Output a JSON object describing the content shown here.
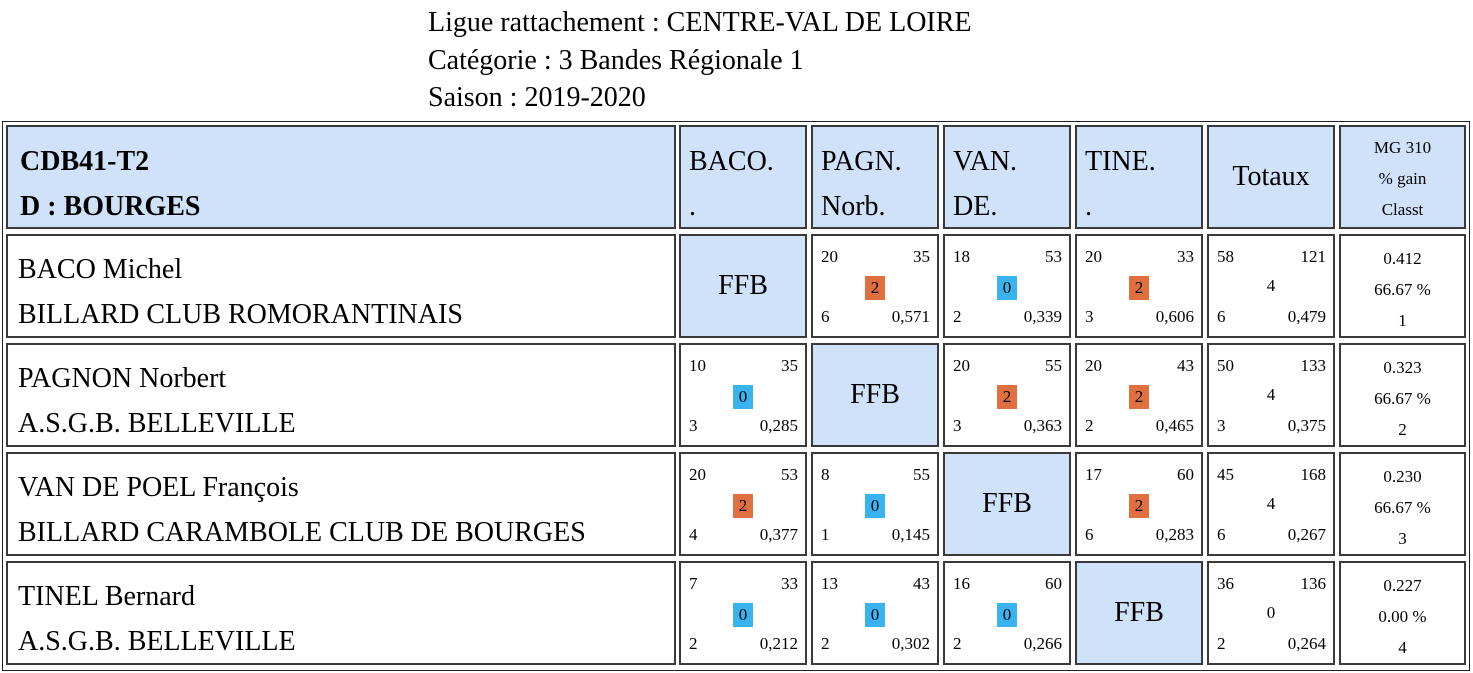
{
  "header": {
    "ligue": "Ligue rattachement : CENTRE-VAL DE LOIRE",
    "categorie": "Catégorie :  3 Bandes Régionale 1",
    "saison": "Saison : 2019-2020"
  },
  "table_header": {
    "group_code": "CDB41-T2",
    "group_place": "D : BOURGES",
    "columns": [
      {
        "line1": "BACO.",
        "line2": "."
      },
      {
        "line1": "PAGN.",
        "line2": "Norb."
      },
      {
        "line1": "VAN.",
        "line2": "DE."
      },
      {
        "line1": "TINE.",
        "line2": "."
      }
    ],
    "totals": "Totaux",
    "mg_lines": [
      "MG 310",
      "% gain",
      "Classt"
    ]
  },
  "colors": {
    "win": "#e0703f",
    "loss": "#39b3f0",
    "self": "#cfe2fa"
  },
  "rows": [
    {
      "name": "BACO Michel",
      "club": "BILLARD CLUB ROMORANTINAIS",
      "results": [
        {
          "self": true,
          "label": "FFB"
        },
        {
          "points": "20",
          "reprises": "35",
          "score": "2",
          "outcome": "win",
          "series": "6",
          "moyenne": "0,571"
        },
        {
          "points": "18",
          "reprises": "53",
          "score": "0",
          "outcome": "loss",
          "series": "2",
          "moyenne": "0,339"
        },
        {
          "points": "20",
          "reprises": "33",
          "score": "2",
          "outcome": "win",
          "series": "3",
          "moyenne": "0,606"
        }
      ],
      "totals": {
        "points": "58",
        "reprises": "121",
        "score": "4",
        "series": "6",
        "moyenne": "0,479"
      },
      "mg": "0.412",
      "gain": "66.67 %",
      "rank": "1"
    },
    {
      "name": "PAGNON Norbert",
      "club": "A.S.G.B. BELLEVILLE",
      "results": [
        {
          "points": "10",
          "reprises": "35",
          "score": "0",
          "outcome": "loss",
          "series": "3",
          "moyenne": "0,285"
        },
        {
          "self": true,
          "label": "FFB"
        },
        {
          "points": "20",
          "reprises": "55",
          "score": "2",
          "outcome": "win",
          "series": "3",
          "moyenne": "0,363"
        },
        {
          "points": "20",
          "reprises": "43",
          "score": "2",
          "outcome": "win",
          "series": "2",
          "moyenne": "0,465"
        }
      ],
      "totals": {
        "points": "50",
        "reprises": "133",
        "score": "4",
        "series": "3",
        "moyenne": "0,375"
      },
      "mg": "0.323",
      "gain": "66.67 %",
      "rank": "2"
    },
    {
      "name": "VAN DE POEL François",
      "club": "BILLARD CARAMBOLE CLUB DE BOURGES",
      "results": [
        {
          "points": "20",
          "reprises": "53",
          "score": "2",
          "outcome": "win",
          "series": "4",
          "moyenne": "0,377"
        },
        {
          "points": "8",
          "reprises": "55",
          "score": "0",
          "outcome": "loss",
          "series": "1",
          "moyenne": "0,145"
        },
        {
          "self": true,
          "label": "FFB"
        },
        {
          "points": "17",
          "reprises": "60",
          "score": "2",
          "outcome": "win",
          "series": "6",
          "moyenne": "0,283"
        }
      ],
      "totals": {
        "points": "45",
        "reprises": "168",
        "score": "4",
        "series": "6",
        "moyenne": "0,267"
      },
      "mg": "0.230",
      "gain": "66.67 %",
      "rank": "3"
    },
    {
      "name": "TINEL Bernard",
      "club": "A.S.G.B. BELLEVILLE",
      "results": [
        {
          "points": "7",
          "reprises": "33",
          "score": "0",
          "outcome": "loss",
          "series": "2",
          "moyenne": "0,212"
        },
        {
          "points": "13",
          "reprises": "43",
          "score": "0",
          "outcome": "loss",
          "series": "2",
          "moyenne": "0,302"
        },
        {
          "points": "16",
          "reprises": "60",
          "score": "0",
          "outcome": "loss",
          "series": "2",
          "moyenne": "0,266"
        },
        {
          "self": true,
          "label": "FFB"
        }
      ],
      "totals": {
        "points": "36",
        "reprises": "136",
        "score": "0",
        "series": "2",
        "moyenne": "0,264"
      },
      "mg": "0.227",
      "gain": "0.00 %",
      "rank": "4"
    }
  ]
}
